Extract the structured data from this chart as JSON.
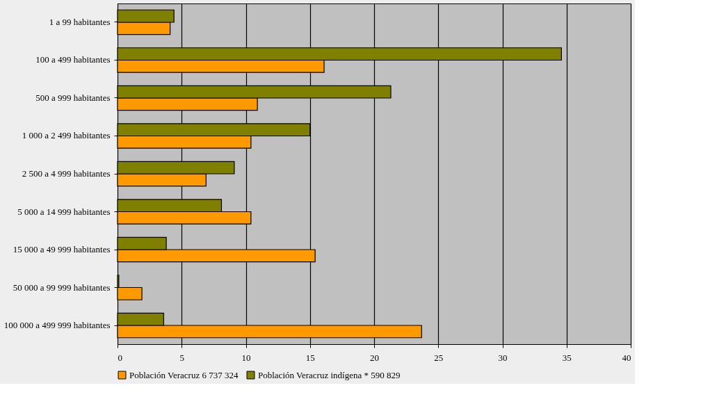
{
  "chart_data": {
    "type": "bar",
    "orientation": "horizontal",
    "categories": [
      "1 a 99 habitantes",
      "100 a 499 habitantes",
      "500 a 999 habitantes",
      "1 000 a 2 499 habitantes",
      "2 500 a 4 999 habitantes",
      "5 000 a 14 999 habitantes",
      "15 000 a 49 999 habitantes",
      "50 000 a 99 999 habitantes",
      "100 000 a 499 999 habitantes"
    ],
    "series": [
      {
        "name": "Población Veracruz 6 737 324",
        "color": "#ff9900",
        "values": [
          4.1,
          16.1,
          10.9,
          10.4,
          6.9,
          10.4,
          15.4,
          1.9,
          23.7
        ]
      },
      {
        "name": "Población Veracruz indígena * 590 829",
        "color": "#808000",
        "values": [
          4.4,
          34.6,
          21.3,
          15.0,
          9.1,
          8.1,
          3.8,
          0.1,
          3.6
        ]
      }
    ],
    "xlim": [
      0,
      40
    ],
    "xticks": [
      0,
      5,
      10,
      15,
      20,
      25,
      30,
      35,
      40
    ],
    "grid": "x",
    "legend": "bottom"
  }
}
